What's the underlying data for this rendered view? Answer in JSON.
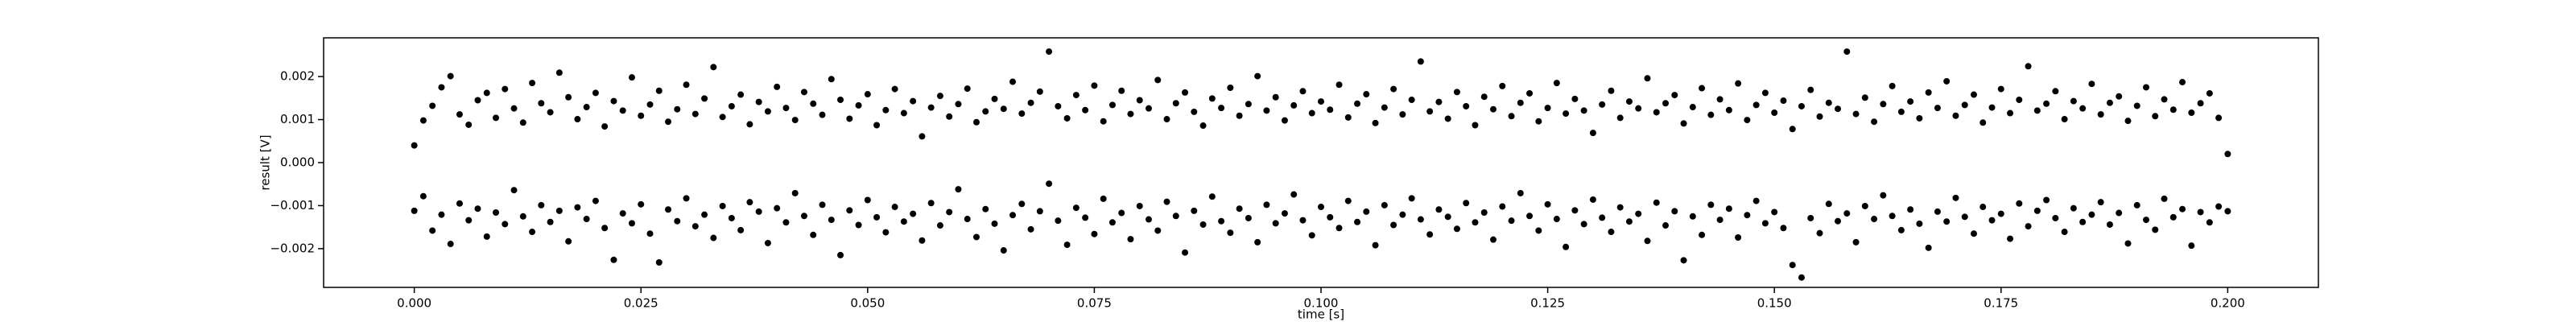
{
  "chart_data": {
    "type": "scatter",
    "xlabel": "time [s]",
    "ylabel": "result [V]",
    "xlim": [
      -0.01,
      0.21
    ],
    "ylim": [
      -0.0029,
      0.0029
    ],
    "xticks": [
      {
        "value": 0,
        "label": "0.000"
      },
      {
        "value": 0.025,
        "label": "0.025"
      },
      {
        "value": 0.05,
        "label": "0.050"
      },
      {
        "value": 0.075,
        "label": "0.075"
      },
      {
        "value": 0.1,
        "label": "0.100"
      },
      {
        "value": 0.125,
        "label": "0.125"
      },
      {
        "value": 0.15,
        "label": "0.150"
      },
      {
        "value": 0.175,
        "label": "0.175"
      },
      {
        "value": 0.2,
        "label": "0.200"
      }
    ],
    "yticks": [
      {
        "value": -0.002,
        "label": "−0.002"
      },
      {
        "value": -0.001,
        "label": "−0.001"
      },
      {
        "value": 0,
        "label": "0.000"
      },
      {
        "value": 0.001,
        "label": "0.001"
      },
      {
        "value": 0.002,
        "label": "0.002"
      }
    ],
    "x": [
      0,
      0.001,
      0.002,
      0.003,
      0.004,
      0.005,
      0.006,
      0.007,
      0.008,
      0.009,
      0.01,
      0.011,
      0.012,
      0.013,
      0.014,
      0.015,
      0.016,
      0.017,
      0.018,
      0.019,
      0.02,
      0.021,
      0.022,
      0.023,
      0.024,
      0.025,
      0.026,
      0.027,
      0.028,
      0.029,
      0.03,
      0.031,
      0.032,
      0.033,
      0.034,
      0.035,
      0.036,
      0.037,
      0.038,
      0.039,
      0.04,
      0.041,
      0.042,
      0.043,
      0.044,
      0.045,
      0.046,
      0.047,
      0.048,
      0.049,
      0.05,
      0.051,
      0.052,
      0.053,
      0.054,
      0.055,
      0.056,
      0.057,
      0.058,
      0.059,
      0.06,
      0.061,
      0.062,
      0.063,
      0.064,
      0.065,
      0.066,
      0.067,
      0.068,
      0.069,
      0.07,
      0.071,
      0.072,
      0.073,
      0.074,
      0.075,
      0.076,
      0.077,
      0.078,
      0.079,
      0.08,
      0.081,
      0.082,
      0.083,
      0.084,
      0.085,
      0.086,
      0.087,
      0.088,
      0.089,
      0.09,
      0.091,
      0.092,
      0.093,
      0.094,
      0.095,
      0.096,
      0.097,
      0.098,
      0.099,
      0.1,
      0.101,
      0.102,
      0.103,
      0.104,
      0.105,
      0.106,
      0.107,
      0.108,
      0.109,
      0.11,
      0.111,
      0.112,
      0.113,
      0.114,
      0.115,
      0.116,
      0.117,
      0.118,
      0.119,
      0.12,
      0.121,
      0.122,
      0.123,
      0.124,
      0.125,
      0.126,
      0.127,
      0.128,
      0.129,
      0.13,
      0.131,
      0.132,
      0.133,
      0.134,
      0.135,
      0.136,
      0.137,
      0.138,
      0.139,
      0.14,
      0.141,
      0.142,
      0.143,
      0.144,
      0.145,
      0.146,
      0.147,
      0.148,
      0.149,
      0.15,
      0.151,
      0.152,
      0.153,
      0.154,
      0.155,
      0.156,
      0.157,
      0.158,
      0.159,
      0.16,
      0.161,
      0.162,
      0.163,
      0.164,
      0.165,
      0.166,
      0.167,
      0.168,
      0.169,
      0.17,
      0.171,
      0.172,
      0.173,
      0.174,
      0.175,
      0.176,
      0.177,
      0.178,
      0.179,
      0.18,
      0.181,
      0.182,
      0.183,
      0.184,
      0.185,
      0.186,
      0.187,
      0.188,
      0.189,
      0.19,
      0.191,
      0.192,
      0.193,
      0.194,
      0.195,
      0.196,
      0.197,
      0.198,
      0.199,
      0.2
    ],
    "series": [
      {
        "color": "#000000",
        "values": [
          0.0004,
          0.00098,
          0.00132,
          0.00175,
          0.00201,
          0.00112,
          0.00088,
          0.00145,
          0.00162,
          0.00104,
          0.00171,
          0.00126,
          0.00093,
          0.00185,
          0.00138,
          0.00117,
          0.00209,
          0.00152,
          0.00101,
          0.00129,
          0.00162,
          0.00084,
          0.00143,
          0.00121,
          0.00198,
          0.00109,
          0.00135,
          0.00167,
          0.00095,
          0.00124,
          0.00181,
          0.00113,
          0.00149,
          0.00222,
          0.00106,
          0.00131,
          0.00158,
          0.00089,
          0.00141,
          0.00119,
          0.00176,
          0.00127,
          0.00099,
          0.00164,
          0.00137,
          0.00111,
          0.00194,
          0.00146,
          0.00102,
          0.00133,
          0.00159,
          0.00087,
          0.00122,
          0.00171,
          0.00115,
          0.00143,
          0.00061,
          0.00128,
          0.00155,
          0.00107,
          0.00136,
          0.00172,
          0.00094,
          0.00119,
          0.00148,
          0.00125,
          0.00188,
          0.00114,
          0.00139,
          0.00165,
          0.00258,
          0.00131,
          0.00103,
          0.00157,
          0.00122,
          0.00179,
          0.00096,
          0.00134,
          0.00167,
          0.00113,
          0.00145,
          0.00126,
          0.00192,
          0.00101,
          0.00138,
          0.00163,
          0.00118,
          0.00086,
          0.00149,
          0.00127,
          0.00174,
          0.00109,
          0.00136,
          0.00201,
          0.00121,
          0.00152,
          0.00098,
          0.00133,
          0.00166,
          0.00115,
          0.00142,
          0.00123,
          0.00181,
          0.00105,
          0.00137,
          0.00159,
          0.00092,
          0.00128,
          0.00171,
          0.00112,
          0.00146,
          0.00235,
          0.00119,
          0.00141,
          0.00102,
          0.00164,
          0.00131,
          0.00087,
          0.00153,
          0.00124,
          0.00178,
          0.00108,
          0.00139,
          0.00161,
          0.00096,
          0.00127,
          0.00185,
          0.00114,
          0.00148,
          0.00121,
          0.00069,
          0.00135,
          0.00167,
          0.00104,
          0.00142,
          0.00126,
          0.00196,
          0.00117,
          0.00138,
          0.00157,
          0.00091,
          0.00129,
          0.00173,
          0.00111,
          0.00147,
          0.00122,
          0.00184,
          0.00099,
          0.00134,
          0.00162,
          0.00116,
          0.00144,
          0.00078,
          0.00131,
          0.00169,
          0.00107,
          0.00139,
          0.00125,
          0.00258,
          0.00113,
          0.00151,
          0.00095,
          0.00136,
          0.00178,
          0.00118,
          0.00142,
          0.00103,
          0.00163,
          0.00127,
          0.00189,
          0.00109,
          0.00134,
          0.00158,
          0.00093,
          0.00128,
          0.00171,
          0.00115,
          0.00146,
          0.00224,
          0.00121,
          0.00137,
          0.00166,
          0.00101,
          0.00143,
          0.00126,
          0.00183,
          0.00112,
          0.00139,
          0.00154,
          0.00097,
          0.00132,
          0.00175,
          0.00108,
          0.00147,
          0.00123,
          0.00187,
          0.00116,
          0.00138,
          0.00161,
          0.00104,
          0.0002
        ]
      },
      {
        "color": "#000000",
        "values": [
          -0.00112,
          -0.00078,
          -0.00158,
          -0.00121,
          -0.00189,
          -0.00095,
          -0.00134,
          -0.00107,
          -0.00172,
          -0.00116,
          -0.00143,
          -0.00064,
          -0.00125,
          -0.00161,
          -0.00099,
          -0.00138,
          -0.00112,
          -0.00183,
          -0.00104,
          -0.00131,
          -0.00089,
          -0.00152,
          -0.00226,
          -0.00118,
          -0.00141,
          -0.00097,
          -0.00165,
          -0.00232,
          -0.00109,
          -0.00136,
          -0.00083,
          -0.00148,
          -0.00121,
          -0.00175,
          -0.00101,
          -0.00129,
          -0.00157,
          -0.00092,
          -0.00114,
          -0.00187,
          -0.00106,
          -0.00139,
          -0.00071,
          -0.00124,
          -0.00168,
          -0.00098,
          -0.00133,
          -0.00215,
          -0.00111,
          -0.00145,
          -0.00087,
          -0.00127,
          -0.00162,
          -0.00103,
          -0.00137,
          -0.00119,
          -0.00181,
          -0.00094,
          -0.00146,
          -0.00115,
          -0.00062,
          -0.00131,
          -0.00173,
          -0.00108,
          -0.00142,
          -0.00204,
          -0.00122,
          -0.00096,
          -0.00155,
          -0.00113,
          -0.00049,
          -0.00135,
          -0.00191,
          -0.00105,
          -0.00128,
          -0.00166,
          -0.00084,
          -0.00139,
          -0.00117,
          -0.00178,
          -0.00101,
          -0.00132,
          -0.00158,
          -0.00091,
          -0.00124,
          -0.00209,
          -0.00112,
          -0.00144,
          -0.00079,
          -0.00136,
          -0.00163,
          -0.00107,
          -0.00129,
          -0.00185,
          -0.00098,
          -0.00141,
          -0.00118,
          -0.00074,
          -0.00134,
          -0.00169,
          -0.00103,
          -0.00127,
          -0.00152,
          -0.00089,
          -0.00138,
          -0.00114,
          -0.00192,
          -0.00099,
          -0.00145,
          -0.00121,
          -0.00083,
          -0.00132,
          -0.00167,
          -0.00109,
          -0.00126,
          -0.00154,
          -0.00094,
          -0.00139,
          -0.00116,
          -0.00179,
          -0.00102,
          -0.00135,
          -0.00071,
          -0.00124,
          -0.00158,
          -0.00097,
          -0.00131,
          -0.00196,
          -0.00111,
          -0.00143,
          -0.00086,
          -0.00128,
          -0.00161,
          -0.00104,
          -0.00137,
          -0.00119,
          -0.00182,
          -0.00093,
          -0.00146,
          -0.00113,
          -0.00227,
          -0.00125,
          -0.00168,
          -0.00098,
          -0.00133,
          -0.00107,
          -0.00174,
          -0.00122,
          -0.00089,
          -0.00141,
          -0.00115,
          -0.00152,
          -0.00238,
          -0.00267,
          -0.00129,
          -0.00164,
          -0.00096,
          -0.00136,
          -0.00118,
          -0.00185,
          -0.00101,
          -0.00131,
          -0.00076,
          -0.00124,
          -0.00157,
          -0.00109,
          -0.00142,
          -0.00198,
          -0.00114,
          -0.00137,
          -0.00082,
          -0.00126,
          -0.00165,
          -0.00103,
          -0.00134,
          -0.00119,
          -0.00177,
          -0.00095,
          -0.00148,
          -0.00112,
          -0.00087,
          -0.00129,
          -0.00161,
          -0.00106,
          -0.00138,
          -0.00121,
          -0.00092,
          -0.00144,
          -0.00117,
          -0.00188,
          -0.00099,
          -0.00133,
          -0.00156,
          -0.00084,
          -0.00127,
          -0.00108,
          -0.00193,
          -0.00115,
          -0.00139,
          -0.00102,
          -0.00113
        ]
      }
    ]
  }
}
